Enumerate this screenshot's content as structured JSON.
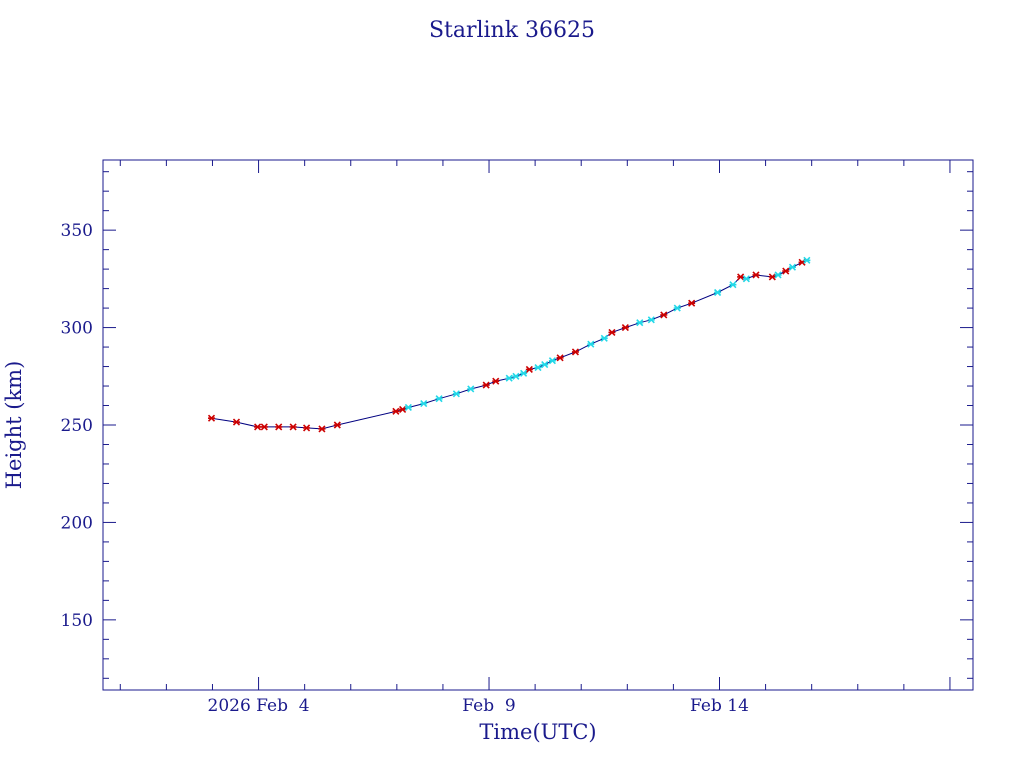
{
  "chart_data": {
    "type": "scatter",
    "title": "Starlink 36625",
    "xlabel": "Time(UTC)",
    "ylabel": "Height (km)",
    "x_axis": "date",
    "xlim": [
      "2026-01-31T15:00",
      "2026-02-19T12:00"
    ],
    "ylim": [
      114,
      386
    ],
    "x_ticks": [
      {
        "date": "2026-02-04T00:00",
        "label": "2026 Feb  4"
      },
      {
        "date": "2026-02-09T00:00",
        "label": "Feb  9"
      },
      {
        "date": "2026-02-14T00:00",
        "label": "Feb 14"
      }
    ],
    "y_ticks": [
      150,
      200,
      250,
      300,
      350
    ],
    "grid": false,
    "legend": "none",
    "colors": {
      "axis": "#1a1a8c",
      "line": "#000080",
      "marker_a": "#cc0000",
      "marker_b": "#22d8e8"
    },
    "series": [
      {
        "marker": "red",
        "points": [
          {
            "x": "2026-02-02T23:30",
            "y": 253.5
          },
          {
            "x": "2026-02-03T12:30",
            "y": 251.5
          },
          {
            "x": "2026-02-03T23:30",
            "y": 249
          },
          {
            "x": "2026-02-04T03:00",
            "y": 249
          },
          {
            "x": "2026-02-04T10:30",
            "y": 249
          },
          {
            "x": "2026-02-04T18:00",
            "y": 249
          },
          {
            "x": "2026-02-05T01:00",
            "y": 248.5
          },
          {
            "x": "2026-02-05T09:00",
            "y": 248
          },
          {
            "x": "2026-02-05T17:00",
            "y": 250
          },
          {
            "x": "2026-02-06T23:30",
            "y": 257
          },
          {
            "x": "2026-02-07T03:00",
            "y": 258
          },
          {
            "x": "2026-02-08T22:30",
            "y": 270.5
          },
          {
            "x": "2026-02-09T03:30",
            "y": 272.5
          },
          {
            "x": "2026-02-09T21:00",
            "y": 278.5
          },
          {
            "x": "2026-02-10T13:00",
            "y": 284.5
          },
          {
            "x": "2026-02-10T21:00",
            "y": 287.5
          },
          {
            "x": "2026-02-11T16:00",
            "y": 297.5
          },
          {
            "x": "2026-02-11T23:00",
            "y": 300
          },
          {
            "x": "2026-02-12T19:00",
            "y": 306.5
          },
          {
            "x": "2026-02-13T09:30",
            "y": 312.5
          },
          {
            "x": "2026-02-14T11:00",
            "y": 326
          },
          {
            "x": "2026-02-14T19:00",
            "y": 327
          },
          {
            "x": "2026-02-15T03:30",
            "y": 326
          },
          {
            "x": "2026-02-15T10:30",
            "y": 329
          },
          {
            "x": "2026-02-15T19:00",
            "y": 333.5
          }
        ]
      },
      {
        "marker": "cyan",
        "points": [
          {
            "x": "2026-02-07T06:00",
            "y": 259
          },
          {
            "x": "2026-02-07T14:00",
            "y": 261
          },
          {
            "x": "2026-02-07T22:00",
            "y": 263.5
          },
          {
            "x": "2026-02-08T07:00",
            "y": 266
          },
          {
            "x": "2026-02-08T14:30",
            "y": 268.5
          },
          {
            "x": "2026-02-09T10:30",
            "y": 274
          },
          {
            "x": "2026-02-09T14:00",
            "y": 275
          },
          {
            "x": "2026-02-09T18:00",
            "y": 276.5
          },
          {
            "x": "2026-02-10T01:30",
            "y": 279.5
          },
          {
            "x": "2026-02-10T05:00",
            "y": 281
          },
          {
            "x": "2026-02-10T09:00",
            "y": 283
          },
          {
            "x": "2026-02-11T05:00",
            "y": 291.5
          },
          {
            "x": "2026-02-11T12:00",
            "y": 294.5
          },
          {
            "x": "2026-02-12T06:30",
            "y": 302.5
          },
          {
            "x": "2026-02-12T12:30",
            "y": 304
          },
          {
            "x": "2026-02-13T02:00",
            "y": 310
          },
          {
            "x": "2026-02-13T23:00",
            "y": 318
          },
          {
            "x": "2026-02-14T07:00",
            "y": 322
          },
          {
            "x": "2026-02-14T14:00",
            "y": 325
          },
          {
            "x": "2026-02-15T06:30",
            "y": 327
          },
          {
            "x": "2026-02-15T14:00",
            "y": 331
          },
          {
            "x": "2026-02-15T21:30",
            "y": 334.5
          }
        ]
      }
    ]
  }
}
